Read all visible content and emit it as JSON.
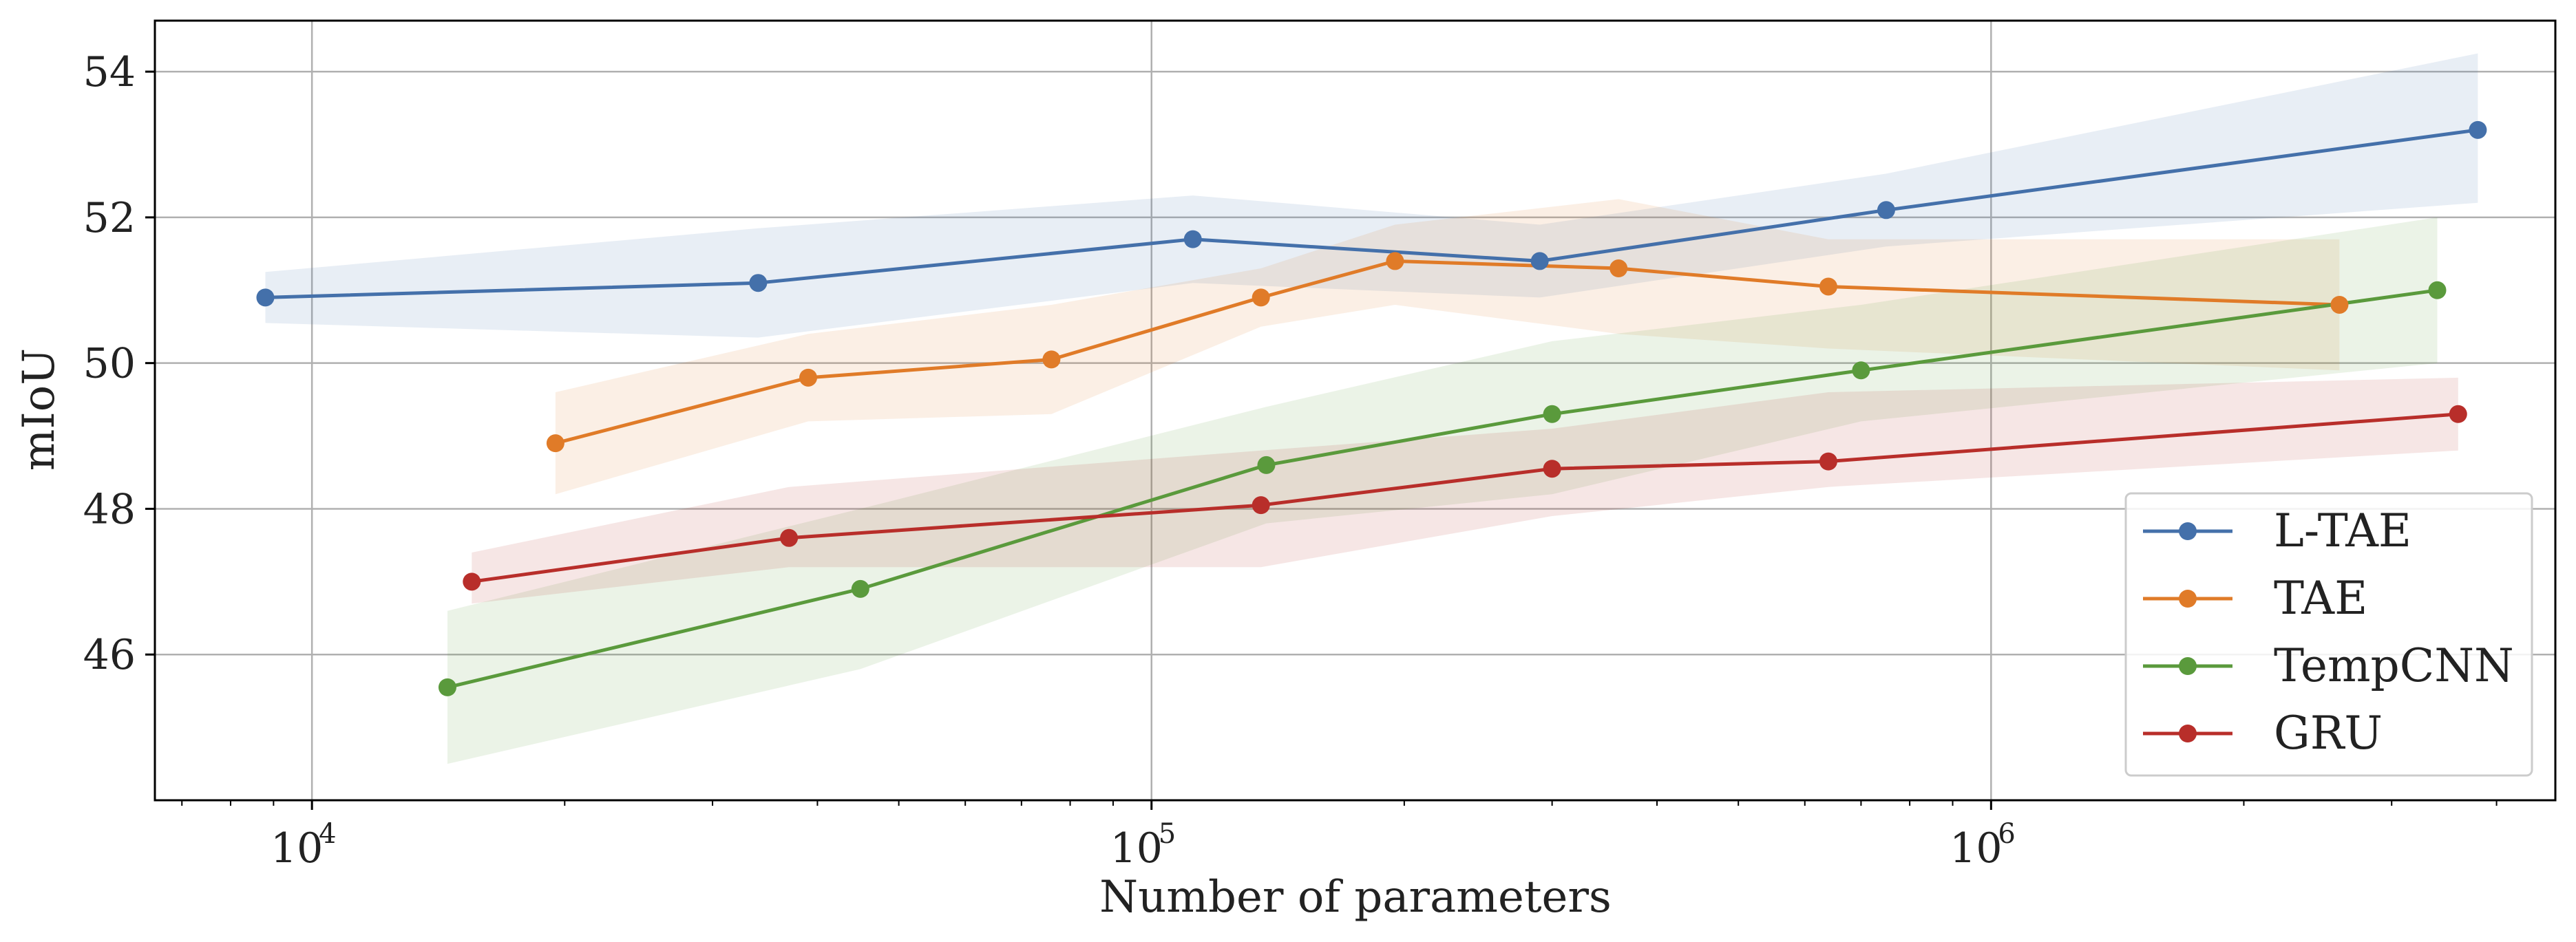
{
  "chart_data": {
    "type": "line",
    "title": "",
    "xlabel": "Number of parameters",
    "ylabel": "mIoU",
    "xscale": "log",
    "xlim": [
      6500,
      4700000
    ],
    "ylim": [
      44.0,
      54.7
    ],
    "x_ticks": [
      {
        "value": 10000,
        "base": "10",
        "exp": "4"
      },
      {
        "value": 100000,
        "base": "10",
        "exp": "5"
      },
      {
        "value": 1000000,
        "base": "10",
        "exp": "6"
      }
    ],
    "y_ticks": [
      {
        "value": 46,
        "label": "46"
      },
      {
        "value": 48,
        "label": "48"
      },
      {
        "value": 50,
        "label": "50"
      },
      {
        "value": 52,
        "label": "52"
      },
      {
        "value": 54,
        "label": "54"
      }
    ],
    "grid": true,
    "legend_position": "lower-right",
    "series": [
      {
        "name": "L-TAE",
        "color": "#4470aa",
        "x": [
          8800,
          34000,
          112000,
          290000,
          750000,
          3800000
        ],
        "y": [
          50.9,
          51.1,
          51.7,
          51.4,
          52.1,
          53.2
        ],
        "lower": [
          50.55,
          50.35,
          51.1,
          50.9,
          51.6,
          52.2
        ],
        "upper": [
          51.25,
          51.85,
          52.3,
          51.9,
          52.6,
          54.25
        ]
      },
      {
        "name": "TAE",
        "color": "#e07b28",
        "x": [
          19500,
          39000,
          76000,
          135000,
          195000,
          360000,
          640000,
          2600000
        ],
        "y": [
          48.9,
          49.8,
          50.05,
          50.9,
          51.4,
          51.3,
          51.05,
          50.8
        ],
        "lower": [
          48.2,
          49.2,
          49.3,
          50.5,
          50.8,
          50.4,
          50.2,
          49.9
        ],
        "upper": [
          49.6,
          50.4,
          50.8,
          51.3,
          51.9,
          52.25,
          51.7,
          51.7
        ]
      },
      {
        "name": "TempCNN",
        "color": "#5a9a3c",
        "x": [
          14500,
          45000,
          137000,
          300000,
          700000,
          3400000
        ],
        "y": [
          45.55,
          46.9,
          48.6,
          49.3,
          49.9,
          51.0
        ],
        "lower": [
          44.5,
          45.8,
          47.8,
          48.2,
          49.2,
          50.0
        ],
        "upper": [
          46.6,
          48.0,
          49.4,
          50.3,
          50.8,
          52.0
        ]
      },
      {
        "name": "GRU",
        "color": "#b82e2a",
        "x": [
          15500,
          37000,
          135000,
          300000,
          640000,
          3600000
        ],
        "y": [
          47.0,
          47.6,
          48.05,
          48.55,
          48.65,
          49.3
        ],
        "lower": [
          46.7,
          47.2,
          47.2,
          47.9,
          48.3,
          48.8
        ],
        "upper": [
          47.4,
          48.3,
          48.8,
          49.1,
          49.6,
          49.8
        ]
      }
    ]
  }
}
